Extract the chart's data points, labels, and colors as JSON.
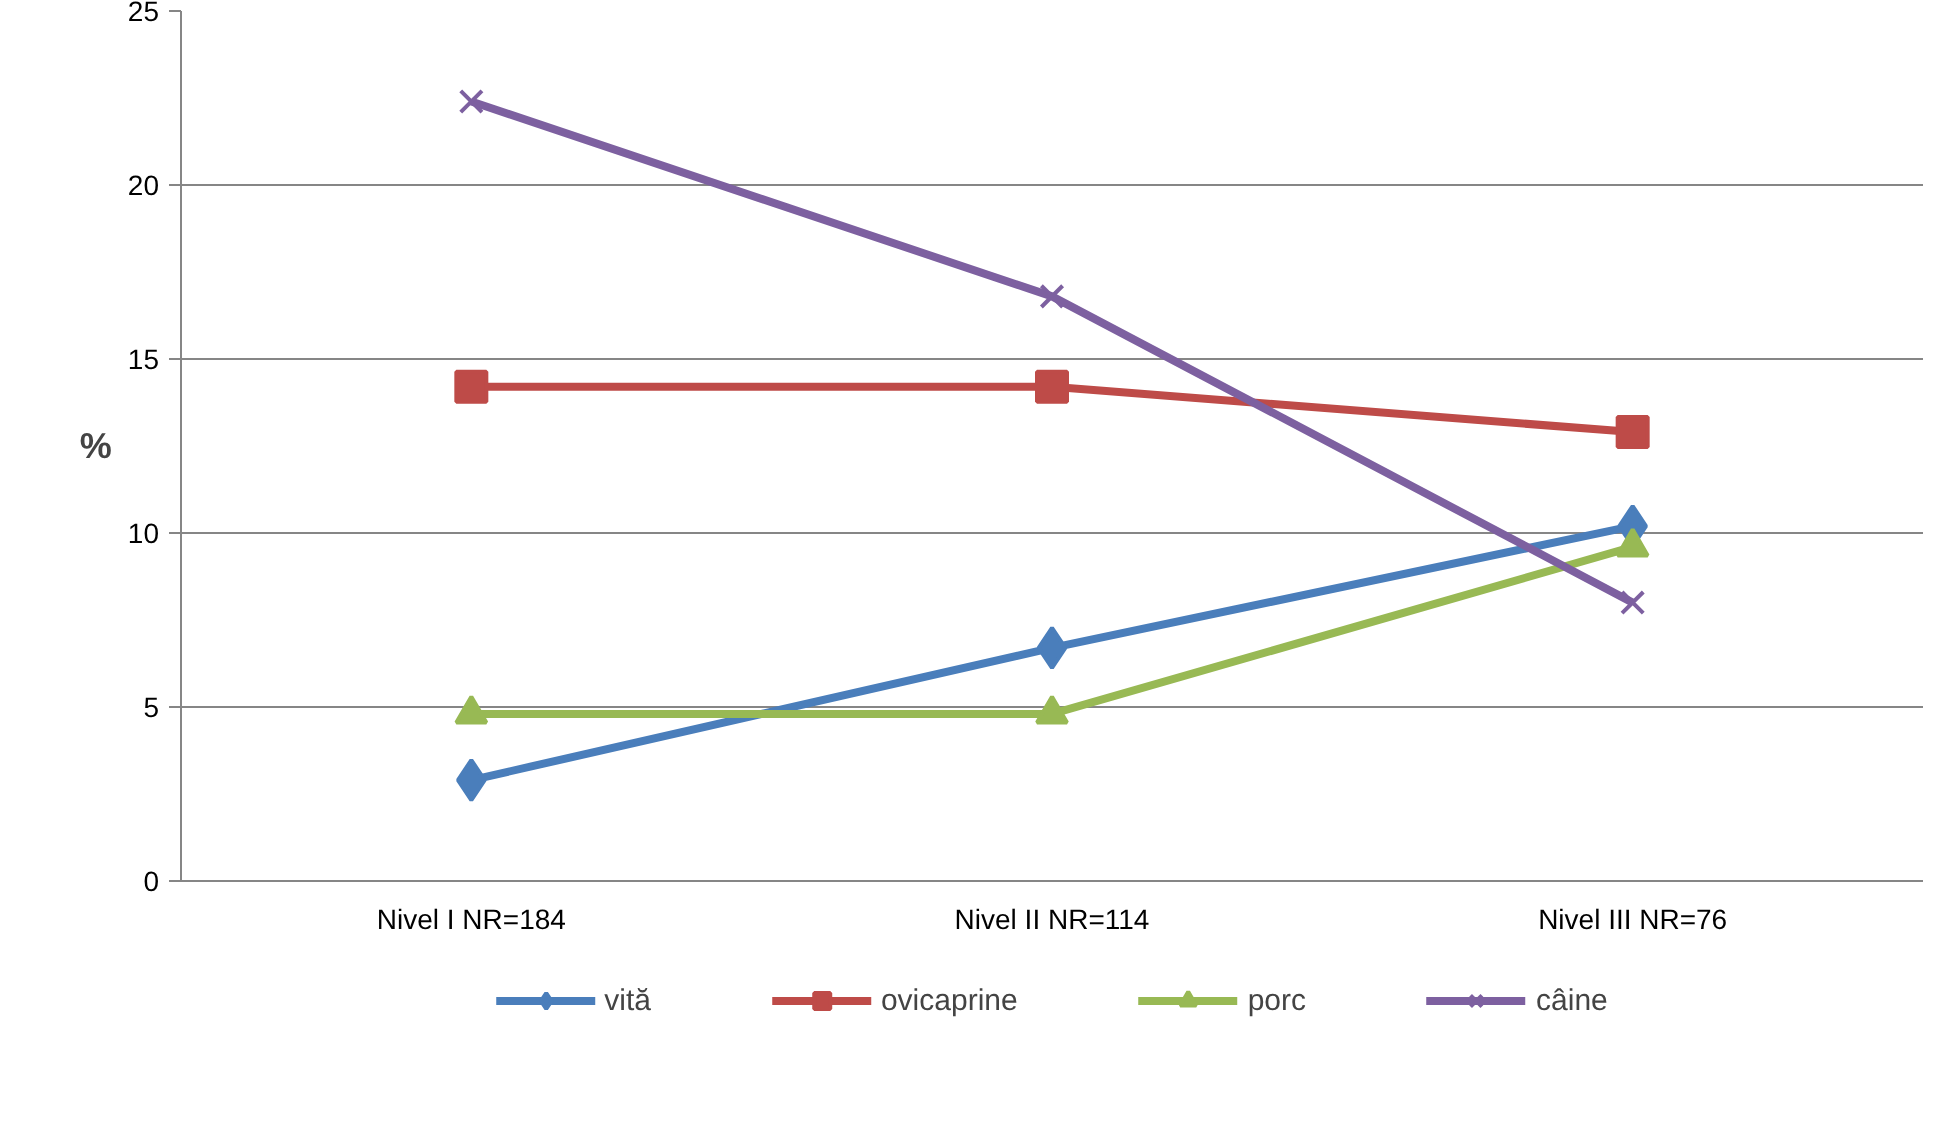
{
  "chart_data": {
    "type": "line",
    "ylabel": "%",
    "categories": [
      "Nivel I NR=184",
      "Nivel II NR=114",
      "Nivel III NR=76"
    ],
    "series": [
      {
        "name": "vită",
        "color": "#4a7ebb",
        "marker": "diamond",
        "values": [
          2.9,
          6.7,
          10.2
        ]
      },
      {
        "name": "ovicaprine",
        "color": "#be4b48",
        "marker": "square",
        "values": [
          14.2,
          14.2,
          12.9
        ]
      },
      {
        "name": "porc",
        "color": "#98b954",
        "marker": "triangle",
        "values": [
          4.8,
          4.8,
          9.6
        ]
      },
      {
        "name": "câine",
        "color": "#7d60a0",
        "marker": "cross",
        "values": [
          22.4,
          16.8,
          8.0
        ]
      }
    ],
    "ylim": [
      0,
      25
    ],
    "yticks": [
      0,
      5,
      10,
      15,
      20,
      25
    ],
    "grid": "y",
    "legend": "bottom",
    "line_style": "solid"
  }
}
